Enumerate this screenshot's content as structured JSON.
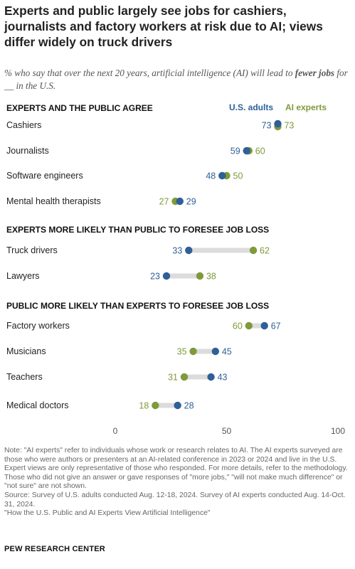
{
  "title": "Experts and public largely see jobs for cashiers, journalists and factory workers at risk due to AI; views differ widely on truck drivers",
  "subtitle": {
    "prefix": "% who say that over the next 20 years, artificial intelligence (AI) will lead to ",
    "emphasis": "fewer jobs",
    "suffix": " for __ in the U.S."
  },
  "colors": {
    "us_adults": "#2f5f98",
    "ai_experts": "#7f9a3b",
    "connector": "#dcdcdc",
    "axis_text": "#555555"
  },
  "chart_data": {
    "type": "dot",
    "legend": [
      "U.S. adults",
      "AI experts"
    ],
    "legend_position": "top-right",
    "xlim": [
      0,
      100
    ],
    "xticks": [
      0,
      50,
      100
    ],
    "groups": [
      {
        "heading": "EXPERTS AND THE PUBLIC AGREE",
        "rows": [
          {
            "label": "Cashiers",
            "us_adults": 73,
            "ai_experts": 73
          },
          {
            "label": "Journalists",
            "us_adults": 59,
            "ai_experts": 60
          },
          {
            "label": "Software engineers",
            "us_adults": 48,
            "ai_experts": 50
          },
          {
            "label": "Mental health therapists",
            "us_adults": 29,
            "ai_experts": 27
          }
        ]
      },
      {
        "heading": "EXPERTS MORE LIKELY THAN PUBLIC TO FORESEE JOB LOSS",
        "rows": [
          {
            "label": "Truck drivers",
            "us_adults": 33,
            "ai_experts": 62
          },
          {
            "label": "Lawyers",
            "us_adults": 23,
            "ai_experts": 38
          }
        ]
      },
      {
        "heading": "PUBLIC MORE LIKELY THAN EXPERTS TO FORESEE JOB LOSS",
        "rows": [
          {
            "label": "Factory workers",
            "us_adults": 67,
            "ai_experts": 60
          },
          {
            "label": "Musicians",
            "us_adults": 45,
            "ai_experts": 35
          },
          {
            "label": "Teachers",
            "us_adults": 43,
            "ai_experts": 31
          },
          {
            "label": "Medical doctors",
            "us_adults": 28,
            "ai_experts": 18
          }
        ]
      }
    ]
  },
  "notes": {
    "note": "Note: \"AI experts\" refer to individuals whose work or research relates to AI. The AI experts surveyed are those who were authors or presenters at an AI-related conference in 2023 or 2024 and live in the U.S. Expert views are only representative of those who responded. For more details, refer to the methodology. Those who did not give an answer or gave responses of \"more jobs,\" \"will not make much difference\" or \"not sure\" are not shown.",
    "source": "Source: Survey of U.S. adults conducted Aug. 12-18, 2024. Survey of AI experts conducted Aug. 14-Oct. 31, 2024.",
    "report": "\"How the U.S. Public and AI Experts View Artificial Intelligence\""
  },
  "brand": "PEW RESEARCH CENTER"
}
